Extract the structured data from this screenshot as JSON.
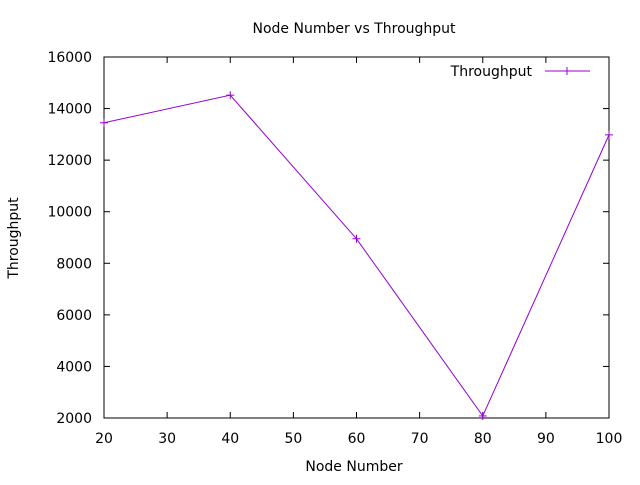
{
  "chart_data": {
    "type": "line",
    "title": "Node Number vs Throughput",
    "xlabel": "Node Number",
    "ylabel": "Throughput",
    "xlim": [
      20,
      100
    ],
    "ylim": [
      2000,
      16000
    ],
    "x_ticks": [
      "20",
      "30",
      "40",
      "50",
      "60",
      "70",
      "80",
      "90",
      "100"
    ],
    "y_ticks": [
      "2000",
      "4000",
      "6000",
      "8000",
      "10000",
      "12000",
      "14000",
      "16000"
    ],
    "grid": false,
    "legend_position": "top-right",
    "series": [
      {
        "name": "Throughput",
        "color": "#9400d3",
        "marker": "plus",
        "x": [
          20,
          40,
          60,
          80,
          100
        ],
        "y": [
          13450,
          14520,
          8950,
          2080,
          12980
        ]
      }
    ]
  }
}
